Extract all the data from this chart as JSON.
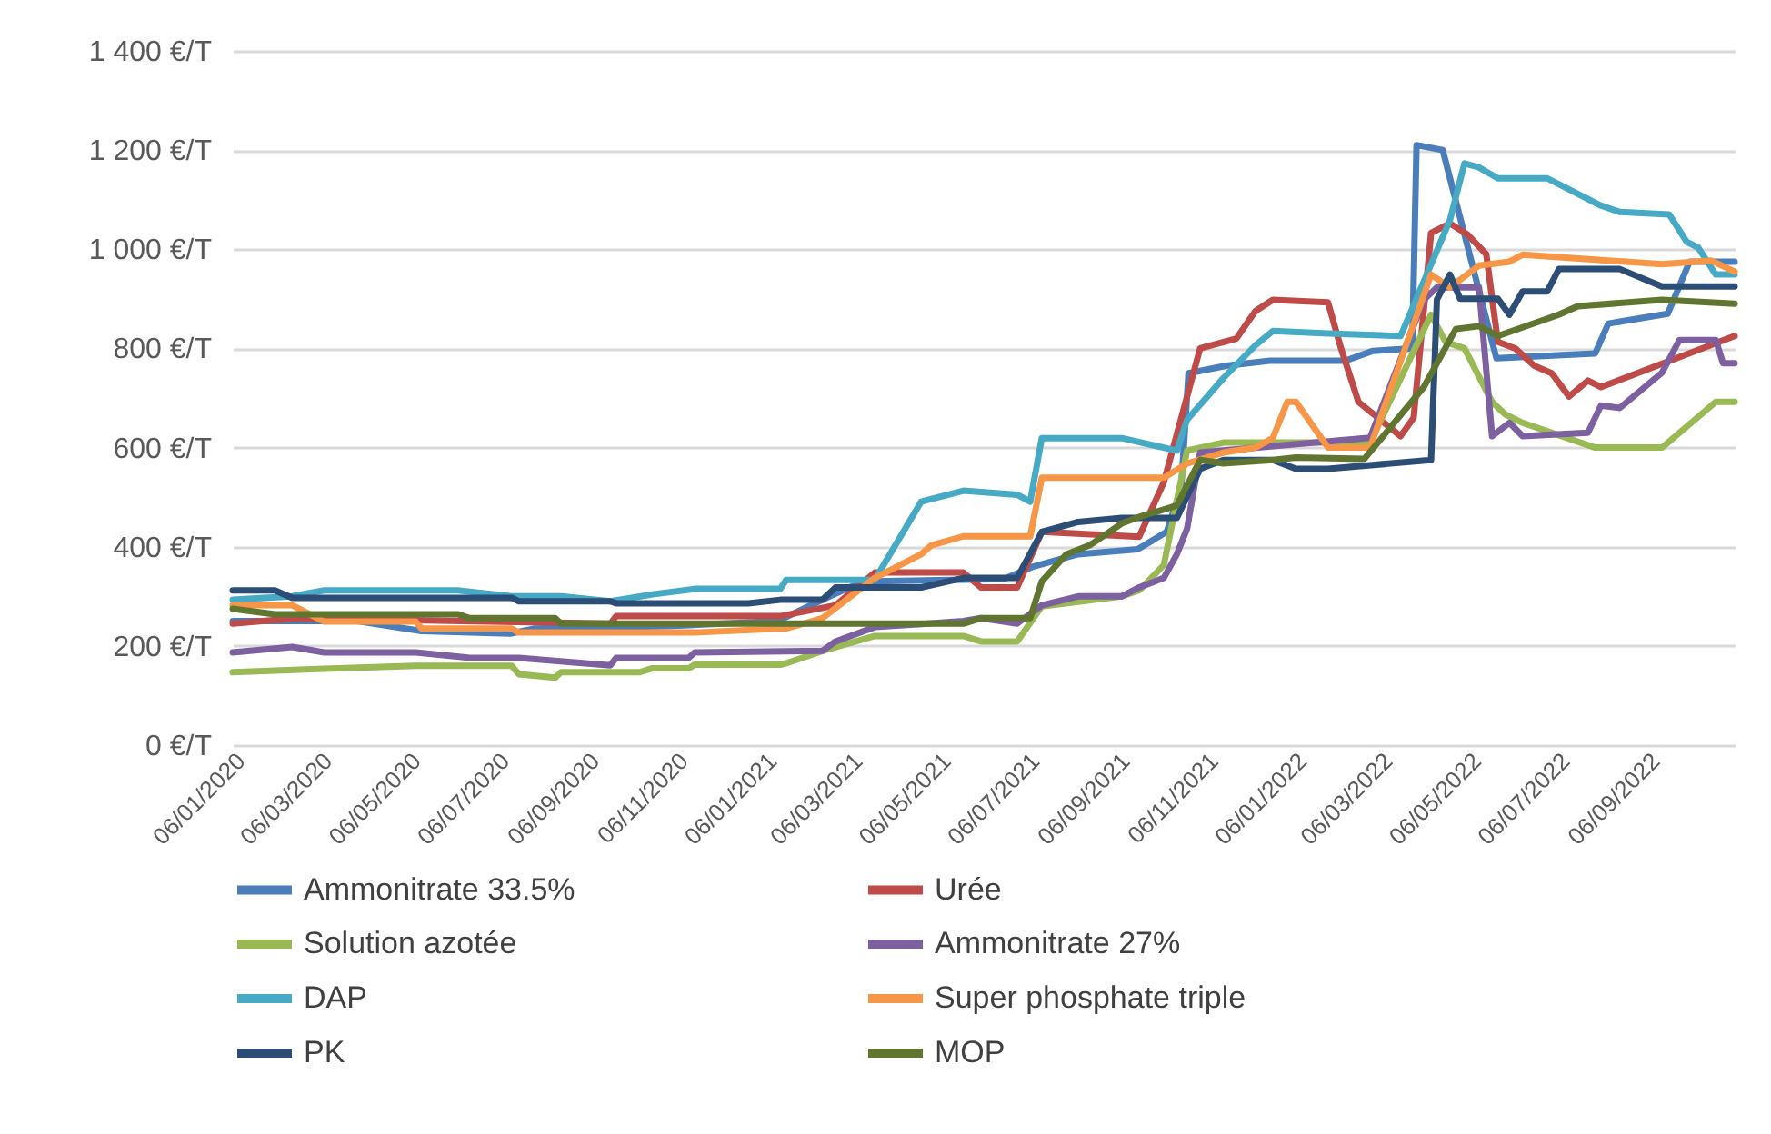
{
  "chart_data": {
    "type": "line",
    "xlim": [
      "2020-01-06",
      "2022-11-05"
    ],
    "xticks": [
      {
        "value": "2020-01-06",
        "label": "06/01/2020"
      },
      {
        "value": "2020-03-06",
        "label": "06/03/2020"
      },
      {
        "value": "2020-05-06",
        "label": "06/05/2020"
      },
      {
        "value": "2020-07-06",
        "label": "06/07/2020"
      },
      {
        "value": "2020-09-06",
        "label": "06/09/2020"
      },
      {
        "value": "2020-11-06",
        "label": "06/11/2020"
      },
      {
        "value": "2021-01-06",
        "label": "06/01/2021"
      },
      {
        "value": "2021-03-06",
        "label": "06/03/2021"
      },
      {
        "value": "2021-05-06",
        "label": "06/05/2021"
      },
      {
        "value": "2021-07-06",
        "label": "06/07/2021"
      },
      {
        "value": "2021-09-06",
        "label": "06/09/2021"
      },
      {
        "value": "2021-11-06",
        "label": "06/11/2021"
      },
      {
        "value": "2022-01-06",
        "label": "06/01/2022"
      },
      {
        "value": "2022-03-06",
        "label": "06/03/2022"
      },
      {
        "value": "2022-05-06",
        "label": "06/05/2022"
      },
      {
        "value": "2022-07-06",
        "label": "06/07/2022"
      },
      {
        "value": "2022-09-06",
        "label": "06/09/2022"
      }
    ],
    "ylim": [
      0,
      1400
    ],
    "yticks": [
      {
        "value": 0,
        "label": "0 €/T"
      },
      {
        "value": 200,
        "label": "200 €/T"
      },
      {
        "value": 400,
        "label": "400 €/T"
      },
      {
        "value": 600,
        "label": "600 €/T"
      },
      {
        "value": 800,
        "label": "800 €/T"
      },
      {
        "value": 1000,
        "label": "1 000 €/T"
      },
      {
        "value": 1200,
        "label": "1 200 €/T"
      },
      {
        "value": 1400,
        "label": "1 400 €/T"
      }
    ],
    "grid": "y",
    "legend": "bottom",
    "line_style": "solid",
    "marker": "none",
    "series": [
      {
        "name": "Ammonitrate 33.5%",
        "color": "#4a7ebb",
        "x": [
          "2020-01-06",
          "2020-04-01",
          "2020-05-15",
          "2020-07-15",
          "2020-08-01",
          "2020-11-01",
          "2021-01-15",
          "2021-02-20",
          "2021-03-15",
          "2021-06-20",
          "2021-07-10",
          "2021-08-10",
          "2021-09-20",
          "2021-10-10",
          "2021-10-20",
          "2021-10-25",
          "2021-11-20",
          "2021-12-20",
          "2022-02-10",
          "2022-03-01",
          "2022-03-28",
          "2022-03-31",
          "2022-04-18",
          "2022-05-25",
          "2022-08-01",
          "2022-08-10",
          "2022-09-20",
          "2022-10-05",
          "2022-11-05"
        ],
        "values": [
          250,
          250,
          230,
          225,
          235,
          240,
          250,
          300,
          330,
          335,
          360,
          385,
          395,
          430,
          520,
          750,
          765,
          775,
          775,
          795,
          800,
          1210,
          1200,
          780,
          790,
          850,
          870,
          975,
          975
        ]
      },
      {
        "name": "Urée",
        "color": "#be4b48",
        "x": [
          "2020-01-06",
          "2020-02-16",
          "2020-03-09",
          "2020-09-22",
          "2020-09-26",
          "2021-01-17",
          "2021-02-24",
          "2021-03-23",
          "2021-05-23",
          "2021-06-04",
          "2021-06-29",
          "2021-07-16",
          "2021-09-21",
          "2021-10-08",
          "2021-11-02",
          "2021-11-27",
          "2021-12-10",
          "2021-12-22",
          "2022-01-29",
          "2022-02-07",
          "2022-02-19",
          "2022-03-20",
          "2022-03-29",
          "2022-04-10",
          "2022-04-23",
          "2022-05-05",
          "2022-05-18",
          "2022-05-26",
          "2022-06-07",
          "2022-06-20",
          "2022-07-02",
          "2022-07-14",
          "2022-07-27",
          "2022-08-05",
          "2022-11-05"
        ],
        "values": [
          245,
          255,
          255,
          245,
          260,
          260,
          282,
          348,
          348,
          318,
          318,
          430,
          420,
          530,
          800,
          820,
          875,
          898,
          893,
          800,
          692,
          623,
          660,
          1033,
          1052,
          1030,
          990,
          813,
          800,
          765,
          750,
          703,
          735,
          722,
          825
        ]
      },
      {
        "name": "Solution azotée",
        "color": "#98b954",
        "x": [
          "2020-01-06",
          "2020-03-09",
          "2020-05-11",
          "2020-07-16",
          "2020-07-21",
          "2020-08-15",
          "2020-08-19",
          "2020-10-12",
          "2020-10-21",
          "2020-11-15",
          "2020-11-19",
          "2021-01-17",
          "2021-01-21",
          "2021-02-15",
          "2021-03-23",
          "2021-05-23",
          "2021-06-04",
          "2021-06-29",
          "2021-07-16",
          "2021-09-09",
          "2021-09-21",
          "2021-10-08",
          "2021-10-24",
          "2021-11-18",
          "2022-02-27",
          "2022-04-10",
          "2022-04-20",
          "2022-05-03",
          "2022-05-22",
          "2022-05-31",
          "2022-06-12",
          "2022-08-01",
          "2022-09-16",
          "2022-10-23",
          "2022-11-05"
        ],
        "values": [
          147,
          154,
          160,
          160,
          143,
          136,
          147,
          147,
          155,
          155,
          162,
          162,
          165,
          190,
          220,
          220,
          209,
          209,
          280,
          300,
          312,
          363,
          594,
          610,
          610,
          868,
          813,
          800,
          692,
          667,
          650,
          600,
          600,
          692,
          692
        ]
      },
      {
        "name": "Ammonitrate 27%",
        "color": "#7d60a0",
        "x": [
          "2020-01-06",
          "2020-02-16",
          "2020-03-09",
          "2020-05-11",
          "2020-06-17",
          "2020-07-21",
          "2020-09-22",
          "2020-09-26",
          "2020-11-15",
          "2020-11-19",
          "2021-02-15",
          "2021-02-24",
          "2021-03-23",
          "2021-05-23",
          "2021-06-04",
          "2021-06-29",
          "2021-07-16",
          "2021-08-10",
          "2021-09-09",
          "2021-09-21",
          "2021-10-08",
          "2021-10-17",
          "2021-10-24",
          "2021-11-02",
          "2022-02-27",
          "2022-04-05",
          "2022-04-14",
          "2022-05-13",
          "2022-05-22",
          "2022-06-03",
          "2022-06-12",
          "2022-07-27",
          "2022-08-05",
          "2022-08-18",
          "2022-09-16",
          "2022-09-28",
          "2022-10-23",
          "2022-10-28",
          "2022-11-05"
        ],
        "values": [
          187,
          198,
          187,
          187,
          176,
          176,
          161,
          176,
          176,
          187,
          190,
          209,
          238,
          250,
          256,
          245,
          282,
          300,
          300,
          318,
          337,
          385,
          436,
          590,
          620,
          898,
          923,
          923,
          623,
          650,
          623,
          630,
          685,
          680,
          751,
          817,
          817,
          770,
          770
        ]
      },
      {
        "name": "DAP",
        "color": "#46aac5",
        "x": [
          "2020-01-06",
          "2020-02-16",
          "2020-03-09",
          "2020-06-09",
          "2020-07-16",
          "2020-08-19",
          "2020-09-22",
          "2020-10-21",
          "2020-11-19",
          "2021-01-17",
          "2021-01-21",
          "2021-03-23",
          "2021-04-24",
          "2021-05-23",
          "2021-06-29",
          "2021-07-08",
          "2021-07-16",
          "2021-09-09",
          "2021-10-17",
          "2021-10-24",
          "2021-11-18",
          "2021-12-10",
          "2021-12-22",
          "2022-01-29",
          "2022-03-20",
          "2022-04-23",
          "2022-05-03",
          "2022-05-13",
          "2022-05-26",
          "2022-06-29",
          "2022-08-05",
          "2022-08-18",
          "2022-09-21",
          "2022-10-03",
          "2022-10-11",
          "2022-10-23",
          "2022-11-05"
        ],
        "values": [
          293,
          300,
          312,
          312,
          300,
          300,
          290,
          304,
          315,
          315,
          333,
          333,
          491,
          513,
          505,
          491,
          619,
          619,
          594,
          656,
          740,
          806,
          835,
          830,
          825,
          1059,
          1173,
          1165,
          1143,
          1143,
          1088,
          1075,
          1070,
          1015,
          1003,
          949,
          949
        ]
      },
      {
        "name": "Super phosphate triple",
        "color": "#f79646",
        "x": [
          "2020-01-06",
          "2020-02-16",
          "2020-03-09",
          "2020-05-11",
          "2020-05-15",
          "2020-07-16",
          "2020-07-21",
          "2020-11-15",
          "2020-11-19",
          "2021-01-17",
          "2021-01-21",
          "2021-02-15",
          "2021-03-23",
          "2021-04-24",
          "2021-05-01",
          "2021-05-23",
          "2021-07-08",
          "2021-07-16",
          "2021-10-08",
          "2021-10-24",
          "2021-11-18",
          "2021-12-10",
          "2021-12-22",
          "2022-01-01",
          "2022-01-07",
          "2022-01-29",
          "2022-02-27",
          "2022-04-10",
          "2022-04-23",
          "2022-05-13",
          "2022-06-03",
          "2022-06-12",
          "2022-09-16",
          "2022-10-20",
          "2022-11-05"
        ],
        "values": [
          282,
          282,
          249,
          249,
          235,
          235,
          227,
          227,
          227,
          235,
          235,
          256,
          337,
          385,
          403,
          421,
          421,
          539,
          539,
          568,
          590,
          600,
          619,
          692,
          692,
          600,
          600,
          949,
          923,
          967,
          975,
          989,
          970,
          977,
          955
        ]
      },
      {
        "name": "PK",
        "color": "#2c4d75",
        "x": [
          "2020-01-06",
          "2020-02-04",
          "2020-02-16",
          "2020-07-16",
          "2020-07-21",
          "2020-09-22",
          "2020-09-26",
          "2020-12-26",
          "2021-01-17",
          "2021-02-15",
          "2021-02-24",
          "2021-04-24",
          "2021-05-23",
          "2021-06-29",
          "2021-07-16",
          "2021-08-10",
          "2021-09-09",
          "2021-10-17",
          "2021-11-02",
          "2021-11-18",
          "2021-12-22",
          "2022-01-07",
          "2022-01-29",
          "2022-04-10",
          "2022-04-14",
          "2022-04-23",
          "2022-04-30",
          "2022-05-26",
          "2022-06-03",
          "2022-06-12",
          "2022-06-29",
          "2022-07-07",
          "2022-08-18",
          "2022-09-16",
          "2022-11-05"
        ],
        "values": [
          312,
          312,
          297,
          297,
          290,
          290,
          286,
          286,
          293,
          293,
          318,
          318,
          337,
          337,
          430,
          450,
          458,
          458,
          557,
          575,
          575,
          557,
          557,
          575,
          898,
          949,
          900,
          900,
          868,
          915,
          915,
          960,
          960,
          925,
          925
        ]
      },
      {
        "name": "MOP",
        "color": "#5f7530",
        "x": [
          "2020-01-06",
          "2020-02-04",
          "2020-06-09",
          "2020-06-17",
          "2020-08-15",
          "2020-08-19",
          "2021-05-23",
          "2021-06-04",
          "2021-07-08",
          "2021-07-16",
          "2021-08-02",
          "2021-08-18",
          "2021-09-09",
          "2021-09-21",
          "2021-10-17",
          "2021-11-02",
          "2021-11-18",
          "2021-12-22",
          "2022-01-07",
          "2022-02-23",
          "2022-04-05",
          "2022-04-27",
          "2022-05-13",
          "2022-05-26",
          "2022-07-07",
          "2022-07-20",
          "2022-09-16",
          "2022-11-05"
        ],
        "values": [
          275,
          264,
          264,
          256,
          256,
          245,
          245,
          256,
          256,
          330,
          385,
          403,
          447,
          460,
          483,
          575,
          568,
          575,
          580,
          577,
          722,
          839,
          845,
          825,
          868,
          885,
          898,
          890
        ]
      }
    ]
  }
}
